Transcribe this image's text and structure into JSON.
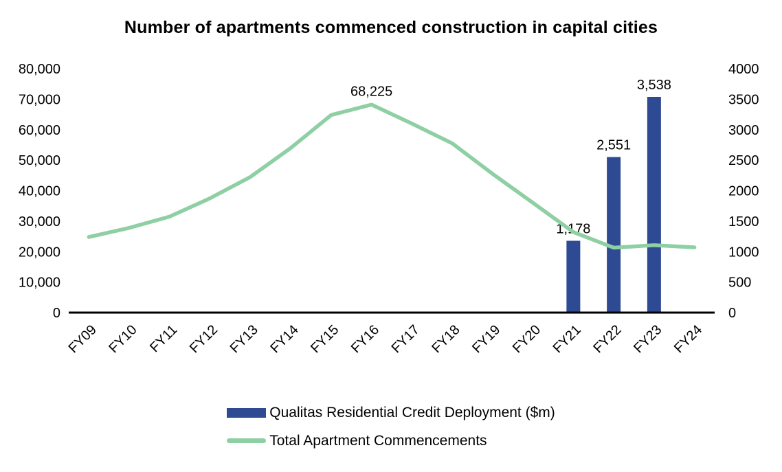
{
  "chart_data": {
    "type": "combo",
    "title": "Number of apartments commenced construction in capital cities",
    "categories": [
      "FY09",
      "FY10",
      "FY11",
      "FY12",
      "FY13",
      "FY14",
      "FY15",
      "FY16",
      "FY17",
      "FY18",
      "FY19",
      "FY20",
      "FY21",
      "FY22",
      "FY23",
      "FY24"
    ],
    "left_axis": {
      "min": 0,
      "max": 80000,
      "step": 10000,
      "tick_labels": [
        "0",
        "10,000",
        "20,000",
        "30,000",
        "40,000",
        "50,000",
        "60,000",
        "70,000",
        "80,000"
      ]
    },
    "right_axis": {
      "min": 0,
      "max": 4000,
      "step": 500,
      "tick_labels": [
        "0",
        "500",
        "1000",
        "1500",
        "2000",
        "2500",
        "3000",
        "3500",
        "4000"
      ]
    },
    "series": [
      {
        "name": "Qualitas Residential Credit Deployment ($m)",
        "type": "bar",
        "axis": "right",
        "color": "#2e4a93",
        "values": [
          null,
          null,
          null,
          null,
          null,
          null,
          null,
          null,
          null,
          null,
          null,
          null,
          1178,
          2551,
          3538,
          null
        ],
        "data_labels": [
          "",
          "",
          "",
          "",
          "",
          "",
          "",
          "",
          "",
          "",
          "",
          "",
          "1,178",
          "2,551",
          "3,538",
          ""
        ]
      },
      {
        "name": "Total Apartment Commencements",
        "type": "line",
        "axis": "left",
        "color": "#8ecfa3",
        "values": [
          24800,
          27800,
          31500,
          37500,
          44500,
          54000,
          64800,
          68225,
          62000,
          55500,
          45500,
          36000,
          26400,
          21300,
          22100,
          21400
        ],
        "data_labels": [
          "",
          "",
          "",
          "",
          "",
          "",
          "",
          "68,225",
          "",
          "",
          "",
          "",
          "",
          "",
          "",
          ""
        ]
      }
    ],
    "grid": false,
    "legend_position": "bottom"
  }
}
